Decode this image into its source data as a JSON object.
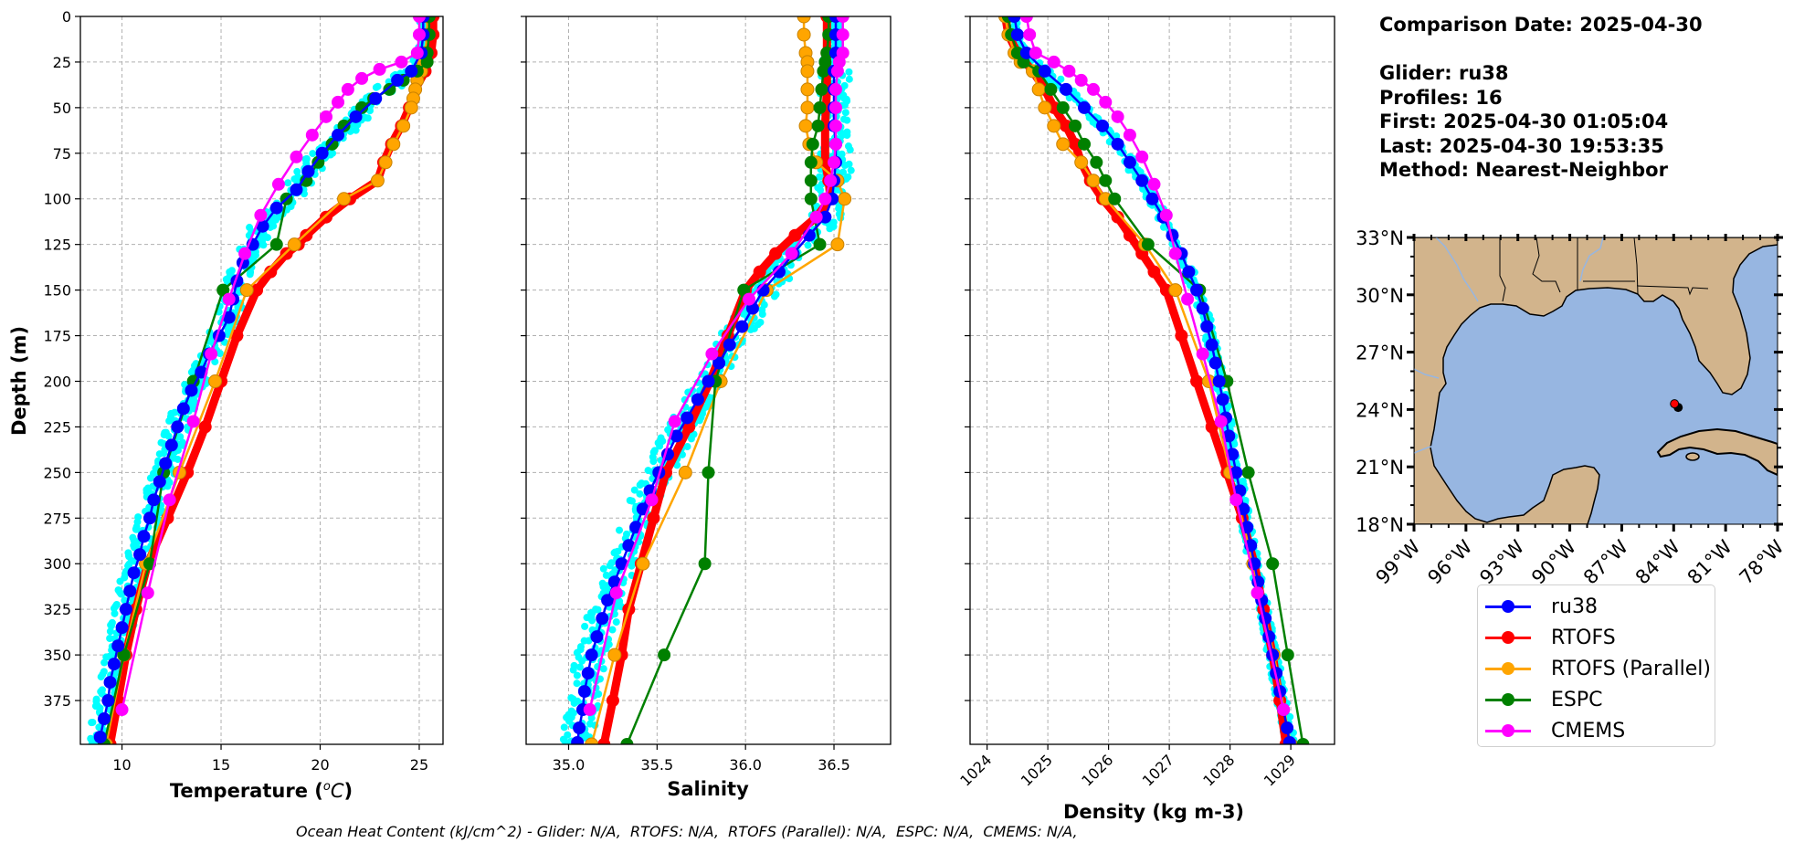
{
  "info": {
    "comparison_date": "Comparison Date: 2025-04-30",
    "glider": "Glider: ru38",
    "profiles": "Profiles: 16",
    "first": "First: 2025-04-30 01:05:04",
    "last": "Last: 2025-04-30 19:53:35",
    "method": "Method: Nearest-Neighbor"
  },
  "footer": {
    "ohc_text": "Ocean Heat Content (kJ/cm^2) - Glider: N/A,  RTOFS: N/A,  RTOFS (Parallel): N/A,  ESPC: N/A,  CMEMS: N/A,"
  },
  "legend": [
    {
      "label": "ru38",
      "color": "#0000ff"
    },
    {
      "label": "RTOFS",
      "color": "#ff0000"
    },
    {
      "label": "RTOFS (Parallel)",
      "color": "#ffa500"
    },
    {
      "label": "ESPC",
      "color": "#008000"
    },
    {
      "label": "CMEMS",
      "color": "#ff00ff"
    }
  ],
  "colors": {
    "glider_profiles": "#00ffff",
    "land": "#d2b48c",
    "ocean": "#97b6e1",
    "river": "#97b6e1",
    "marker": "#ff0000"
  },
  "chart_data": [
    {
      "type": "line",
      "title": "",
      "xlabel": "Temperature (°C)",
      "ylabel": "Depth (m)",
      "xlim": [
        7.9,
        26.2
      ],
      "ylim": [
        399,
        0
      ],
      "xticks": [
        10,
        15,
        20,
        25
      ],
      "yticks": [
        0,
        25,
        50,
        75,
        100,
        125,
        150,
        175,
        200,
        225,
        250,
        275,
        300,
        325,
        350,
        375
      ],
      "grid": true,
      "series": [
        {
          "name": "ru38",
          "depth": [
            0,
            10,
            20,
            30,
            35,
            45,
            55,
            65,
            75,
            85,
            95,
            105,
            115,
            125,
            135,
            145,
            155,
            165,
            175,
            185,
            195,
            205,
            215,
            225,
            235,
            245,
            255,
            265,
            275,
            285,
            295,
            305,
            315,
            325,
            335,
            345,
            355,
            365,
            375,
            385,
            395
          ],
          "values": [
            25.2,
            25.2,
            25.1,
            24.6,
            23.9,
            22.8,
            21.8,
            20.9,
            20.1,
            19.4,
            18.8,
            17.8,
            17.1,
            16.6,
            16.1,
            15.8,
            15.6,
            15.4,
            14.9,
            14.4,
            14.0,
            13.5,
            13.1,
            12.8,
            12.5,
            12.2,
            11.9,
            11.6,
            11.4,
            11.1,
            10.9,
            10.6,
            10.4,
            10.2,
            10.0,
            9.8,
            9.6,
            9.4,
            9.3,
            9.1,
            8.9
          ]
        },
        {
          "name": "RTOFS",
          "depth": [
            0,
            10,
            20,
            30,
            40,
            50,
            60,
            70,
            80,
            90,
            100,
            110,
            120,
            125,
            130,
            140,
            150,
            175,
            200,
            225,
            250,
            275,
            300,
            325,
            350,
            375,
            399
          ],
          "values": [
            25.7,
            25.7,
            25.6,
            25.3,
            24.8,
            24.5,
            24.1,
            23.6,
            23.2,
            22.9,
            21.5,
            20.3,
            19.3,
            18.9,
            18.3,
            17.5,
            16.8,
            15.8,
            15.0,
            14.2,
            13.3,
            12.3,
            11.3,
            10.7,
            10.2,
            9.8,
            9.4
          ]
        },
        {
          "name": "RTOFS (Parallel)",
          "depth": [
            0,
            10,
            20,
            25,
            30,
            35,
            40,
            45,
            50,
            60,
            70,
            80,
            90,
            100,
            125,
            150,
            200,
            250,
            300,
            350,
            399
          ],
          "values": [
            25.4,
            25.4,
            25.3,
            25.2,
            25.1,
            24.9,
            24.8,
            24.7,
            24.6,
            24.2,
            23.7,
            23.3,
            22.9,
            21.2,
            18.7,
            16.3,
            14.7,
            12.9,
            11.2,
            10.1,
            9.2
          ]
        },
        {
          "name": "ESPC",
          "depth": [
            0,
            10,
            20,
            25,
            30,
            35,
            40,
            45,
            50,
            60,
            70,
            80,
            90,
            100,
            125,
            150,
            200,
            250,
            300,
            350,
            399
          ],
          "values": [
            25.5,
            25.5,
            25.4,
            25.4,
            24.9,
            24.2,
            23.5,
            22.7,
            22.1,
            21.2,
            20.6,
            19.9,
            19.3,
            18.3,
            17.8,
            15.1,
            13.6,
            12.1,
            11.4,
            10.1,
            9.1
          ]
        },
        {
          "name": "CMEMS",
          "depth": [
            0,
            10,
            20,
            25,
            29,
            34,
            40,
            47,
            55,
            65,
            77,
            92,
            109,
            130,
            155,
            185,
            222,
            265,
            316,
            380
          ],
          "values": [
            25.0,
            25.0,
            24.9,
            24.1,
            23.0,
            22.1,
            21.4,
            20.9,
            20.3,
            19.6,
            18.8,
            17.9,
            17.0,
            16.2,
            15.4,
            14.5,
            13.6,
            12.4,
            11.3,
            10.0
          ]
        }
      ],
      "scatter": {
        "name": "glider profiles (16)",
        "note": "cyan dots spread approx ±0.6 °C around ru38 mean"
      }
    },
    {
      "type": "line",
      "title": "",
      "xlabel": "Salinity",
      "ylabel": "",
      "xlim": [
        34.76,
        36.82
      ],
      "ylim": [
        399,
        0
      ],
      "xticks": [
        35.0,
        35.5,
        36.0,
        36.5
      ],
      "grid": true,
      "series": [
        {
          "name": "ru38",
          "depth": [
            0,
            10,
            20,
            30,
            40,
            50,
            60,
            70,
            80,
            90,
            100,
            110,
            120,
            130,
            140,
            150,
            160,
            170,
            180,
            190,
            200,
            210,
            220,
            230,
            240,
            250,
            260,
            270,
            280,
            290,
            300,
            310,
            320,
            330,
            340,
            350,
            360,
            370,
            380,
            390,
            398
          ],
          "values": [
            36.51,
            36.51,
            36.51,
            36.5,
            36.5,
            36.5,
            36.5,
            36.51,
            36.51,
            36.5,
            36.49,
            36.45,
            36.36,
            36.27,
            36.19,
            36.1,
            36.04,
            35.98,
            35.91,
            35.85,
            35.79,
            35.73,
            35.67,
            35.61,
            35.56,
            35.51,
            35.46,
            35.42,
            35.38,
            35.34,
            35.3,
            35.26,
            35.22,
            35.19,
            35.16,
            35.13,
            35.11,
            35.09,
            35.08,
            35.06,
            35.05
          ]
        },
        {
          "name": "RTOFS",
          "depth": [
            0,
            20,
            40,
            60,
            80,
            90,
            100,
            110,
            120,
            130,
            140,
            150,
            175,
            200,
            225,
            250,
            275,
            300,
            325,
            350,
            375,
            399
          ],
          "values": [
            36.46,
            36.46,
            36.46,
            36.45,
            36.45,
            36.47,
            36.48,
            36.4,
            36.28,
            36.17,
            36.08,
            36.0,
            35.9,
            35.8,
            35.68,
            35.55,
            35.48,
            35.41,
            35.34,
            35.3,
            35.25,
            35.2
          ]
        },
        {
          "name": "RTOFS (Parallel)",
          "depth": [
            0,
            10,
            20,
            25,
            30,
            40,
            50,
            60,
            70,
            80,
            90,
            100,
            125,
            150,
            200,
            250,
            300,
            350,
            399
          ],
          "values": [
            36.33,
            36.33,
            36.34,
            36.35,
            36.35,
            36.35,
            36.35,
            36.34,
            36.36,
            36.4,
            36.52,
            36.56,
            36.52,
            36.12,
            35.86,
            35.66,
            35.42,
            35.26,
            35.13
          ]
        },
        {
          "name": "ESPC",
          "depth": [
            0,
            10,
            20,
            25,
            30,
            40,
            50,
            60,
            70,
            80,
            90,
            100,
            125,
            150,
            200,
            250,
            300,
            350,
            399
          ],
          "values": [
            36.47,
            36.47,
            36.46,
            36.45,
            36.44,
            36.43,
            36.42,
            36.41,
            36.38,
            36.37,
            36.37,
            36.37,
            36.42,
            35.99,
            35.83,
            35.79,
            35.77,
            35.54,
            35.33
          ]
        },
        {
          "name": "CMEMS",
          "depth": [
            0,
            10,
            20,
            25,
            30,
            40,
            50,
            60,
            70,
            80,
            90,
            100,
            110,
            130,
            155,
            185,
            222,
            265,
            316,
            380
          ],
          "values": [
            36.55,
            36.55,
            36.55,
            36.53,
            36.52,
            36.51,
            36.51,
            36.51,
            36.51,
            36.5,
            36.48,
            36.45,
            36.4,
            36.26,
            36.02,
            35.81,
            35.6,
            35.47,
            35.27,
            35.12
          ]
        }
      ],
      "scatter": {
        "name": "glider profiles (16)",
        "note": "cyan dots spread approx ±0.1 around ru38 mean"
      }
    },
    {
      "type": "line",
      "title": "",
      "xlabel": "Density (kg m-3)",
      "ylabel": "",
      "xlim": [
        1023.72,
        1029.72
      ],
      "ylim": [
        399,
        0
      ],
      "xticks": [
        1024,
        1025,
        1026,
        1027,
        1028,
        1029
      ],
      "grid": true,
      "series": [
        {
          "name": "ru38",
          "depth": [
            0,
            10,
            20,
            30,
            40,
            50,
            60,
            70,
            80,
            90,
            100,
            110,
            120,
            130,
            140,
            150,
            160,
            170,
            180,
            190,
            200,
            210,
            220,
            230,
            240,
            250,
            260,
            270,
            280,
            290,
            300,
            310,
            320,
            330,
            340,
            350,
            360,
            370,
            380,
            390,
            398
          ],
          "values": [
            1024.45,
            1024.5,
            1024.65,
            1024.95,
            1025.3,
            1025.6,
            1025.9,
            1026.15,
            1026.35,
            1026.55,
            1026.72,
            1026.9,
            1027.05,
            1027.2,
            1027.32,
            1027.45,
            1027.55,
            1027.62,
            1027.7,
            1027.76,
            1027.82,
            1027.88,
            1027.93,
            1027.98,
            1028.04,
            1028.1,
            1028.16,
            1028.22,
            1028.28,
            1028.34,
            1028.4,
            1028.46,
            1028.52,
            1028.58,
            1028.64,
            1028.7,
            1028.76,
            1028.82,
            1028.88,
            1028.94,
            1028.98
          ]
        },
        {
          "name": "RTOFS",
          "depth": [
            0,
            10,
            20,
            30,
            40,
            50,
            60,
            70,
            80,
            90,
            100,
            110,
            120,
            130,
            140,
            150,
            175,
            200,
            225,
            250,
            275,
            300,
            325,
            350,
            375,
            399
          ],
          "values": [
            1024.3,
            1024.35,
            1024.5,
            1024.75,
            1024.95,
            1025.1,
            1025.3,
            1025.45,
            1025.55,
            1025.7,
            1025.9,
            1026.15,
            1026.35,
            1026.55,
            1026.75,
            1026.95,
            1027.2,
            1027.45,
            1027.7,
            1027.95,
            1028.2,
            1028.4,
            1028.55,
            1028.7,
            1028.82,
            1028.92
          ]
        },
        {
          "name": "RTOFS (Parallel)",
          "depth": [
            0,
            10,
            20,
            25,
            30,
            40,
            50,
            60,
            70,
            80,
            90,
            100,
            125,
            150,
            200,
            250,
            300,
            350,
            399
          ],
          "values": [
            1024.3,
            1024.35,
            1024.45,
            1024.55,
            1024.75,
            1024.85,
            1024.95,
            1025.1,
            1025.25,
            1025.55,
            1025.75,
            1025.95,
            1026.6,
            1027.1,
            1027.65,
            1028.0,
            1028.38,
            1028.72,
            1029.0
          ]
        },
        {
          "name": "ESPC",
          "depth": [
            0,
            10,
            20,
            25,
            30,
            40,
            50,
            60,
            70,
            80,
            90,
            100,
            125,
            150,
            200,
            250,
            300,
            350,
            399
          ],
          "values": [
            1024.35,
            1024.4,
            1024.5,
            1024.6,
            1024.85,
            1025.05,
            1025.25,
            1025.45,
            1025.6,
            1025.8,
            1025.95,
            1026.1,
            1026.65,
            1027.5,
            1027.95,
            1028.3,
            1028.7,
            1028.95,
            1029.2
          ]
        },
        {
          "name": "CMEMS",
          "depth": [
            0,
            10,
            20,
            25,
            30,
            35,
            40,
            47,
            55,
            65,
            77,
            92,
            109,
            130,
            155,
            185,
            222,
            265,
            316,
            380
          ],
          "values": [
            1024.65,
            1024.7,
            1024.8,
            1025.1,
            1025.35,
            1025.55,
            1025.75,
            1025.95,
            1026.15,
            1026.35,
            1026.55,
            1026.75,
            1026.95,
            1027.1,
            1027.3,
            1027.55,
            1027.85,
            1028.1,
            1028.45,
            1028.88
          ]
        }
      ],
      "scatter": {
        "name": "glider profiles (16)",
        "note": "cyan dots spread approx ±0.1 around ru38 mean"
      }
    },
    {
      "type": "map",
      "title": "",
      "lon_range": [
        -99,
        -78
      ],
      "lat_range": [
        18,
        33
      ],
      "xticks": [
        "99°W",
        "96°W",
        "93°W",
        "90°W",
        "87°W",
        "84°W",
        "81°W",
        "78°W"
      ],
      "yticks": [
        "33°N",
        "30°N",
        "27°N",
        "24°N",
        "21°N",
        "18°N"
      ],
      "glider_position": {
        "lon": -83.95,
        "lat": 24.3
      }
    }
  ]
}
